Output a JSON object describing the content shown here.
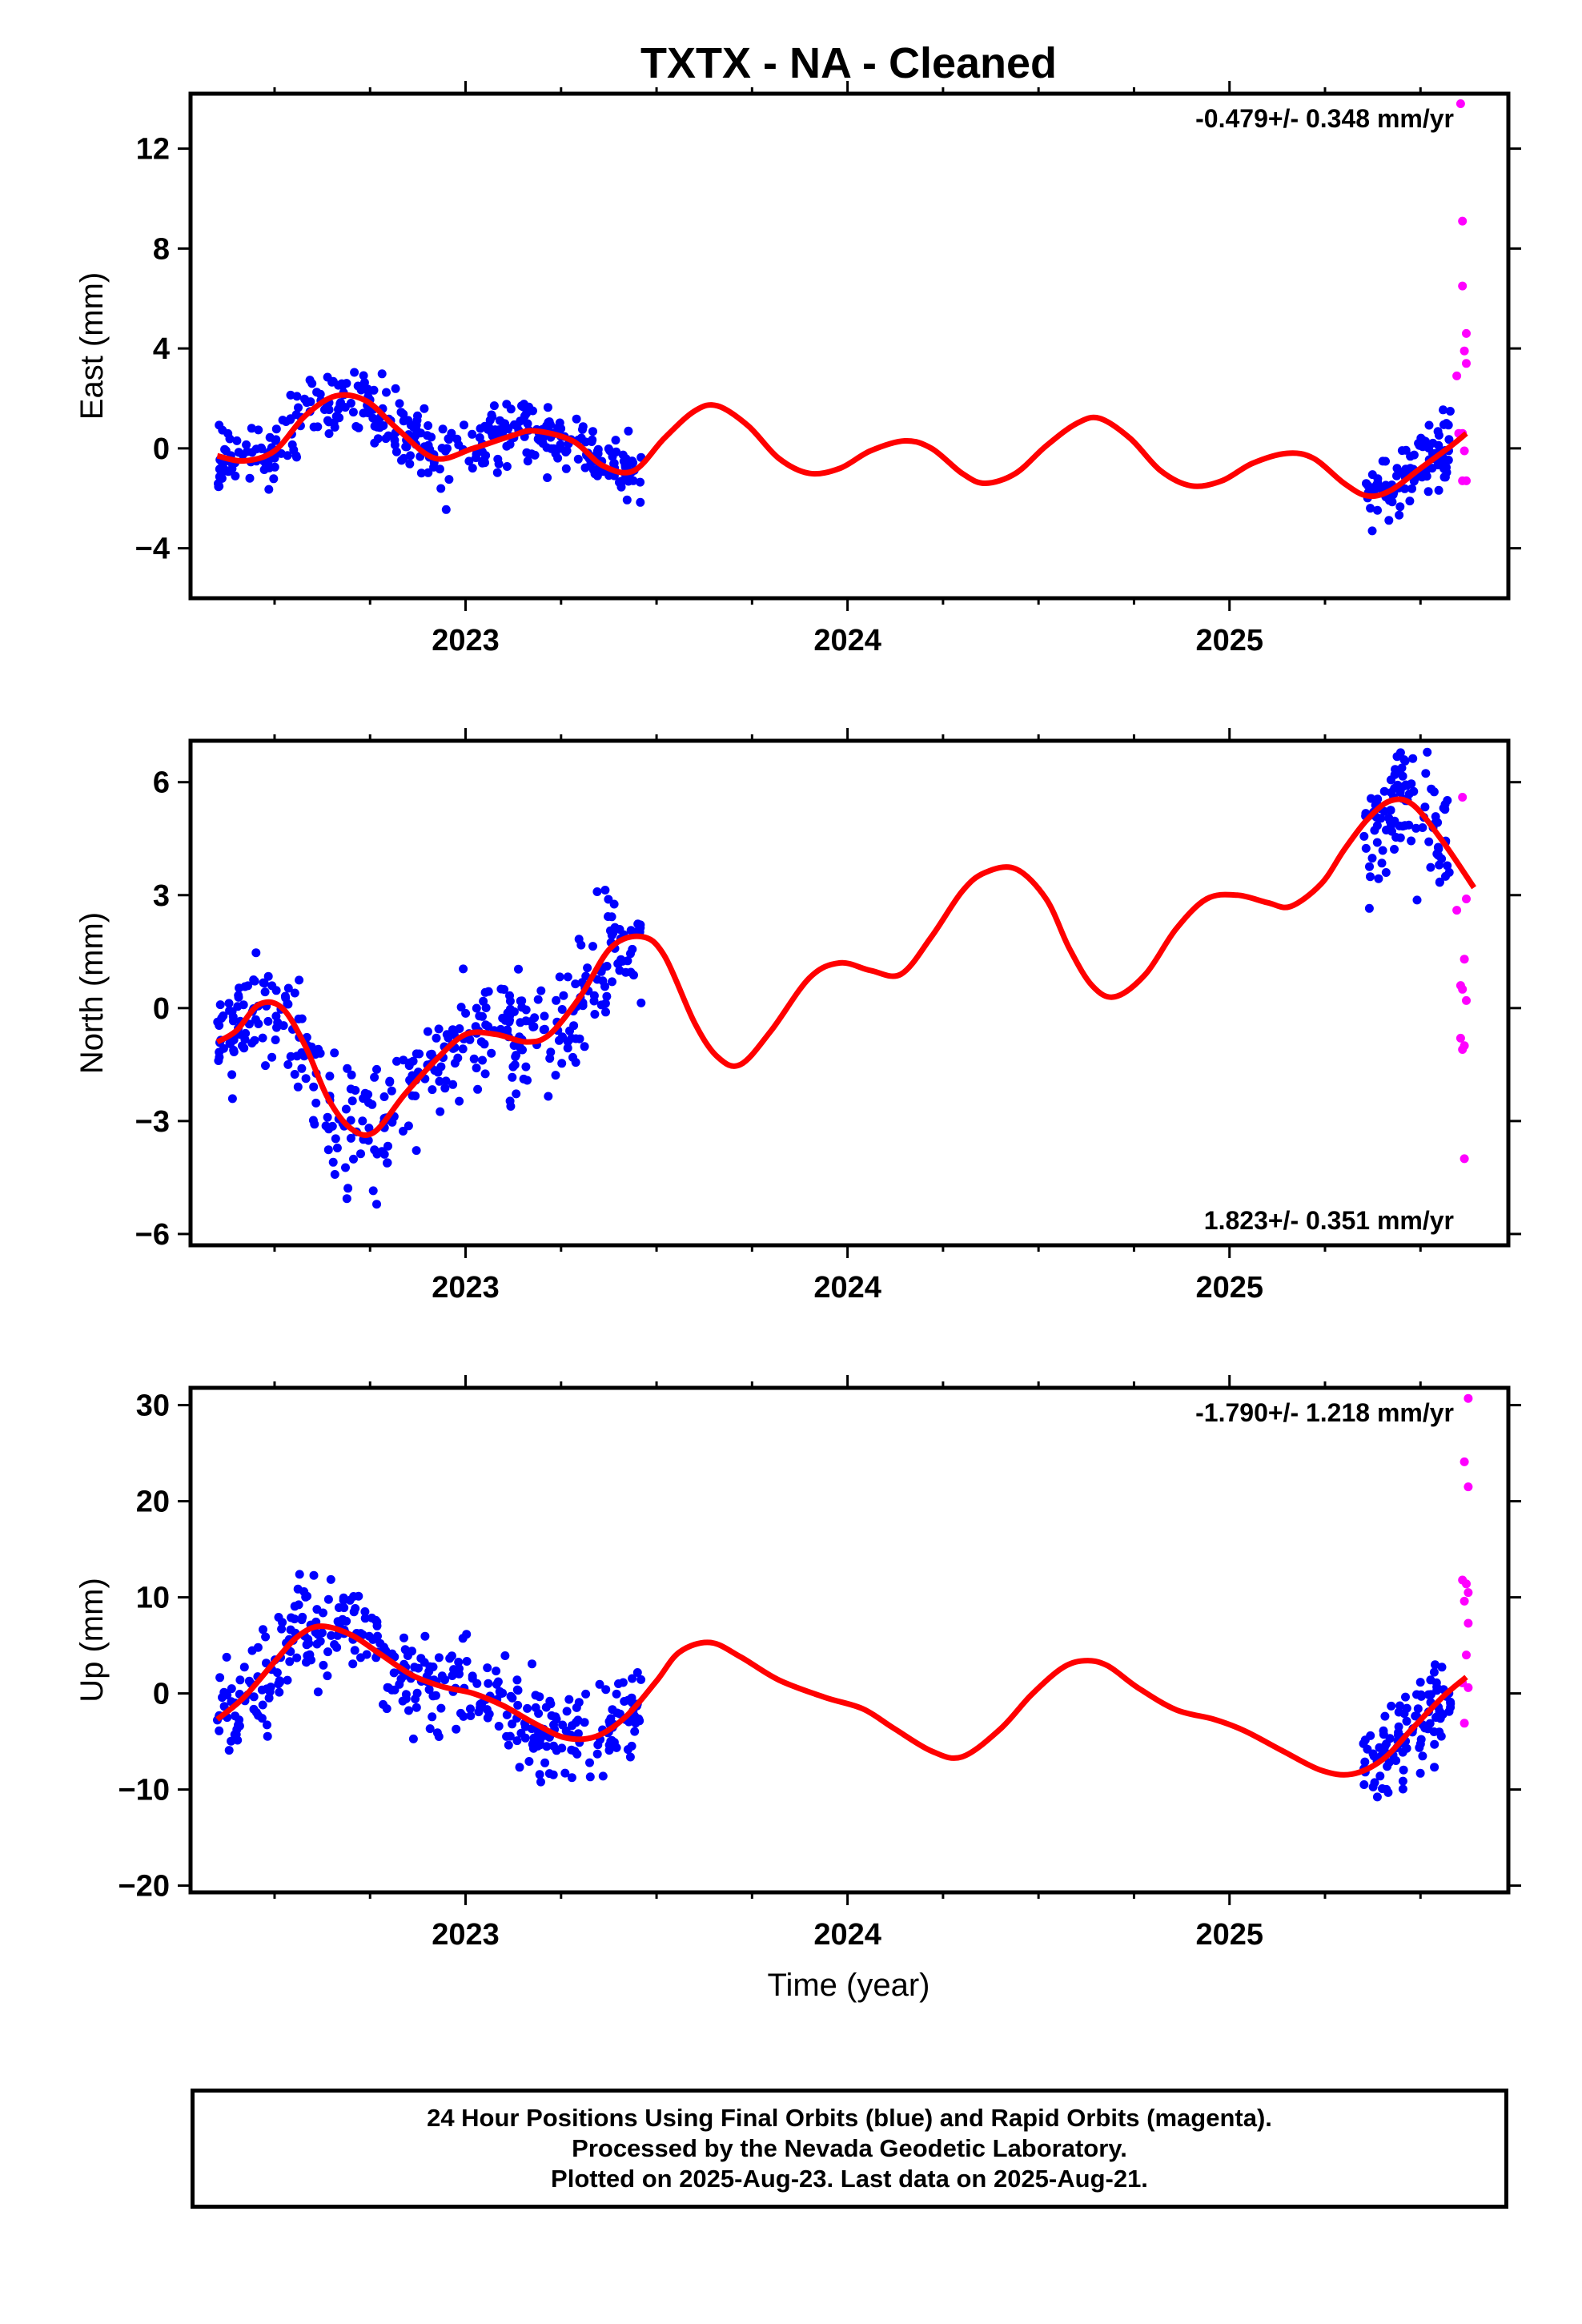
{
  "title": "TXTX  - NA - Cleaned",
  "xlabel": "Time (year)",
  "colors": {
    "final": "#0000ff",
    "rapid": "#ff00ff",
    "model": "#ff0000"
  },
  "footer": {
    "line1": "24 Hour Positions Using Final Orbits (blue) and Rapid Orbits (magenta).",
    "line2": "Processed by the Nevada Geodetic Laboratory.",
    "line3": "Plotted on 2025-Aug-23. Last data on 2025-Aug-21."
  },
  "chart_data": [
    {
      "type": "scatter",
      "component": "east",
      "ylabel": "East (mm)",
      "rate": "-0.479+/- 0.348 mm/yr",
      "xlim": [
        2022.28,
        2025.73
      ],
      "ylim": [
        -6.0,
        14.2
      ],
      "yticks": [
        -4,
        0,
        4,
        8,
        12
      ],
      "xticks": [
        2023,
        2024,
        2025
      ],
      "xticklabels": [
        "2023",
        "2024",
        "2025"
      ],
      "segments": [
        {
          "range": [
            2022.35,
            2023.46
          ],
          "fit": [
            [
              2022.35,
              -0.3
            ],
            [
              2022.42,
              -0.5
            ],
            [
              2022.5,
              -0.1
            ],
            [
              2022.58,
              1.3
            ],
            [
              2022.66,
              2.1
            ],
            [
              2022.74,
              1.9
            ],
            [
              2022.82,
              0.8
            ],
            [
              2022.92,
              -0.4
            ],
            [
              2023.02,
              0.0
            ],
            [
              2023.12,
              0.5
            ],
            [
              2023.18,
              0.7
            ],
            [
              2023.28,
              0.3
            ],
            [
              2023.36,
              -0.7
            ],
            [
              2023.44,
              -0.9
            ]
          ]
        },
        {
          "range": [
            2025.35,
            2025.58
          ],
          "fit": [
            [
              2025.35,
              -1.9
            ],
            [
              2025.42,
              -1.5
            ],
            [
              2025.5,
              -0.6
            ],
            [
              2025.58,
              0.2
            ]
          ]
        }
      ],
      "rapid": [
        [
          2025.605,
          13.8
        ],
        [
          2025.61,
          6.5
        ],
        [
          2025.61,
          9.1
        ],
        [
          2025.615,
          3.9
        ],
        [
          2025.62,
          4.6
        ],
        [
          2025.62,
          3.4
        ],
        [
          2025.595,
          2.9
        ],
        [
          2025.6,
          0.6
        ],
        [
          2025.61,
          0.6
        ],
        [
          2025.615,
          -0.1
        ],
        [
          2025.61,
          -1.3
        ],
        [
          2025.62,
          -1.3
        ]
      ],
      "model": [
        [
          2022.35,
          -0.3
        ],
        [
          2022.42,
          -0.5
        ],
        [
          2022.5,
          -0.1
        ],
        [
          2022.58,
          1.3
        ],
        [
          2022.66,
          2.1
        ],
        [
          2022.74,
          1.9
        ],
        [
          2022.82,
          0.8
        ],
        [
          2022.92,
          -0.4
        ],
        [
          2023.02,
          0.0
        ],
        [
          2023.12,
          0.5
        ],
        [
          2023.18,
          0.7
        ],
        [
          2023.28,
          0.3
        ],
        [
          2023.36,
          -0.7
        ],
        [
          2023.44,
          -0.9
        ],
        [
          2023.52,
          0.4
        ],
        [
          2023.6,
          1.5
        ],
        [
          2023.66,
          1.7
        ],
        [
          2023.74,
          0.9
        ],
        [
          2023.82,
          -0.4
        ],
        [
          2023.9,
          -1.0
        ],
        [
          2023.98,
          -0.8
        ],
        [
          2024.06,
          -0.1
        ],
        [
          2024.15,
          0.3
        ],
        [
          2024.22,
          0.0
        ],
        [
          2024.3,
          -1.0
        ],
        [
          2024.36,
          -1.4
        ],
        [
          2024.44,
          -1.0
        ],
        [
          2024.52,
          0.1
        ],
        [
          2024.6,
          1.0
        ],
        [
          2024.66,
          1.2
        ],
        [
          2024.74,
          0.4
        ],
        [
          2024.82,
          -0.9
        ],
        [
          2024.9,
          -1.5
        ],
        [
          2024.98,
          -1.3
        ],
        [
          2025.06,
          -0.6
        ],
        [
          2025.15,
          -0.2
        ],
        [
          2025.22,
          -0.4
        ],
        [
          2025.3,
          -1.4
        ],
        [
          2025.36,
          -1.9
        ],
        [
          2025.42,
          -1.7
        ],
        [
          2025.5,
          -0.8
        ],
        [
          2025.58,
          0.1
        ],
        [
          2025.62,
          0.6
        ]
      ]
    },
    {
      "type": "scatter",
      "component": "north",
      "ylabel": "North (mm)",
      "rate": "1.823+/- 0.351 mm/yr",
      "xlim": [
        2022.28,
        2025.73
      ],
      "ylim": [
        -6.3,
        7.1
      ],
      "yticks": [
        -6,
        -3,
        0,
        3,
        6
      ],
      "xticks": [
        2023,
        2024,
        2025
      ],
      "xticklabels": [
        "2023",
        "2024",
        "2025"
      ],
      "segments": [
        {
          "range": [
            2022.35,
            2023.46
          ],
          "fit": [
            [
              2022.35,
              -0.9
            ],
            [
              2022.4,
              -0.6
            ],
            [
              2022.46,
              0.1
            ],
            [
              2022.52,
              0.0
            ],
            [
              2022.58,
              -1.0
            ],
            [
              2022.64,
              -2.4
            ],
            [
              2022.7,
              -3.2
            ],
            [
              2022.76,
              -3.3
            ],
            [
              2022.84,
              -2.3
            ],
            [
              2022.92,
              -1.4
            ],
            [
              2023.0,
              -0.7
            ],
            [
              2023.08,
              -0.7
            ],
            [
              2023.16,
              -0.9
            ],
            [
              2023.22,
              -0.7
            ],
            [
              2023.3,
              0.3
            ],
            [
              2023.38,
              1.6
            ],
            [
              2023.46,
              1.9
            ]
          ]
        },
        {
          "range": [
            2025.35,
            2025.58
          ],
          "fit": [
            [
              2025.35,
              4.4
            ],
            [
              2025.4,
              5.2
            ],
            [
              2025.45,
              5.6
            ],
            [
              2025.5,
              5.3
            ],
            [
              2025.58,
              4.1
            ]
          ]
        }
      ],
      "rapid": [
        [
          2025.595,
          2.6
        ],
        [
          2025.61,
          5.6
        ],
        [
          2025.62,
          2.9
        ],
        [
          2025.615,
          1.3
        ],
        [
          2025.62,
          0.2
        ],
        [
          2025.605,
          0.6
        ],
        [
          2025.61,
          0.5
        ],
        [
          2025.605,
          -0.8
        ],
        [
          2025.61,
          -1.1
        ],
        [
          2025.615,
          -1.0
        ],
        [
          2025.615,
          -4.0
        ]
      ],
      "model": [
        [
          2022.35,
          -0.9
        ],
        [
          2022.4,
          -0.6
        ],
        [
          2022.46,
          0.1
        ],
        [
          2022.52,
          0.0
        ],
        [
          2022.58,
          -1.0
        ],
        [
          2022.64,
          -2.4
        ],
        [
          2022.7,
          -3.2
        ],
        [
          2022.76,
          -3.3
        ],
        [
          2022.84,
          -2.3
        ],
        [
          2022.92,
          -1.4
        ],
        [
          2023.0,
          -0.7
        ],
        [
          2023.08,
          -0.7
        ],
        [
          2023.16,
          -0.9
        ],
        [
          2023.22,
          -0.7
        ],
        [
          2023.3,
          0.3
        ],
        [
          2023.38,
          1.6
        ],
        [
          2023.46,
          1.9
        ],
        [
          2023.52,
          1.4
        ],
        [
          2023.6,
          -0.4
        ],
        [
          2023.66,
          -1.3
        ],
        [
          2023.72,
          -1.5
        ],
        [
          2023.8,
          -0.6
        ],
        [
          2023.9,
          0.8
        ],
        [
          2023.98,
          1.2
        ],
        [
          2024.06,
          1.0
        ],
        [
          2024.14,
          0.9
        ],
        [
          2024.22,
          1.9
        ],
        [
          2024.3,
          3.1
        ],
        [
          2024.36,
          3.6
        ],
        [
          2024.44,
          3.7
        ],
        [
          2024.52,
          2.9
        ],
        [
          2024.58,
          1.6
        ],
        [
          2024.64,
          0.6
        ],
        [
          2024.7,
          0.3
        ],
        [
          2024.78,
          0.9
        ],
        [
          2024.86,
          2.1
        ],
        [
          2024.94,
          2.9
        ],
        [
          2025.02,
          3.0
        ],
        [
          2025.1,
          2.8
        ],
        [
          2025.16,
          2.7
        ],
        [
          2025.24,
          3.3
        ],
        [
          2025.3,
          4.2
        ],
        [
          2025.36,
          5.0
        ],
        [
          2025.42,
          5.5
        ],
        [
          2025.48,
          5.4
        ],
        [
          2025.56,
          4.4
        ],
        [
          2025.64,
          3.2
        ]
      ]
    },
    {
      "type": "scatter",
      "component": "up",
      "ylabel": "Up (mm)",
      "rate": "-1.790+/- 1.218 mm/yr",
      "xlim": [
        2022.28,
        2025.73
      ],
      "ylim": [
        -20.7,
        31.8
      ],
      "yticks": [
        -20,
        -10,
        0,
        10,
        20,
        30
      ],
      "xticks": [
        2023,
        2024,
        2025
      ],
      "xticklabels": [
        "2023",
        "2024",
        "2025"
      ],
      "segments": [
        {
          "range": [
            2022.35,
            2023.46
          ],
          "fit": [
            [
              2022.35,
              -2.7
            ],
            [
              2022.42,
              -0.4
            ],
            [
              2022.5,
              3.3
            ],
            [
              2022.56,
              5.9
            ],
            [
              2022.62,
              7.0
            ],
            [
              2022.7,
              6.1
            ],
            [
              2022.78,
              4.0
            ],
            [
              2022.86,
              1.9
            ],
            [
              2022.94,
              0.7
            ],
            [
              2023.02,
              0.0
            ],
            [
              2023.1,
              -1.3
            ],
            [
              2023.18,
              -3.1
            ],
            [
              2023.26,
              -4.6
            ],
            [
              2023.34,
              -4.5
            ],
            [
              2023.42,
              -2.4
            ],
            [
              2023.46,
              -0.7
            ]
          ]
        },
        {
          "range": [
            2025.35,
            2025.58
          ],
          "fit": [
            [
              2025.35,
              -8.1
            ],
            [
              2025.42,
              -6.0
            ],
            [
              2025.5,
              -2.5
            ],
            [
              2025.58,
              0.7
            ]
          ]
        }
      ],
      "rapid": [
        [
          2025.625,
          30.7
        ],
        [
          2025.615,
          24.1
        ],
        [
          2025.625,
          21.5
        ],
        [
          2025.61,
          11.8
        ],
        [
          2025.62,
          11.4
        ],
        [
          2025.625,
          10.5
        ],
        [
          2025.615,
          9.6
        ],
        [
          2025.625,
          7.3
        ],
        [
          2025.62,
          4.0
        ],
        [
          2025.61,
          1.1
        ],
        [
          2025.625,
          0.6
        ],
        [
          2025.615,
          -3.1
        ]
      ],
      "model": [
        [
          2022.35,
          -2.7
        ],
        [
          2022.42,
          -0.4
        ],
        [
          2022.5,
          3.3
        ],
        [
          2022.56,
          5.9
        ],
        [
          2022.62,
          7.0
        ],
        [
          2022.7,
          6.1
        ],
        [
          2022.78,
          4.0
        ],
        [
          2022.86,
          1.9
        ],
        [
          2022.94,
          0.7
        ],
        [
          2023.02,
          0.0
        ],
        [
          2023.1,
          -1.3
        ],
        [
          2023.18,
          -3.1
        ],
        [
          2023.26,
          -4.6
        ],
        [
          2023.34,
          -4.5
        ],
        [
          2023.42,
          -2.4
        ],
        [
          2023.5,
          1.3
        ],
        [
          2023.56,
          4.3
        ],
        [
          2023.64,
          5.3
        ],
        [
          2023.72,
          3.8
        ],
        [
          2023.82,
          1.4
        ],
        [
          2023.94,
          -0.4
        ],
        [
          2024.04,
          -1.6
        ],
        [
          2024.12,
          -3.6
        ],
        [
          2024.22,
          -6.0
        ],
        [
          2024.3,
          -6.6
        ],
        [
          2024.4,
          -3.7
        ],
        [
          2024.48,
          -0.2
        ],
        [
          2024.56,
          2.6
        ],
        [
          2024.62,
          3.4
        ],
        [
          2024.68,
          2.9
        ],
        [
          2024.76,
          0.6
        ],
        [
          2024.86,
          -1.7
        ],
        [
          2024.96,
          -2.7
        ],
        [
          2025.04,
          -3.9
        ],
        [
          2025.14,
          -6.0
        ],
        [
          2025.24,
          -8.0
        ],
        [
          2025.32,
          -8.4
        ],
        [
          2025.4,
          -6.9
        ],
        [
          2025.48,
          -3.6
        ],
        [
          2025.56,
          -0.3
        ],
        [
          2025.62,
          1.7
        ]
      ]
    }
  ]
}
